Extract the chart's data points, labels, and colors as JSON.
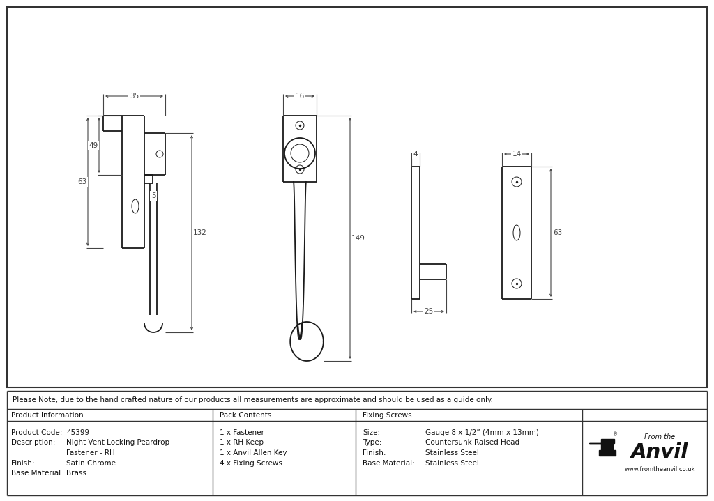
{
  "bg_color": "#ffffff",
  "line_color": "#1a1a1a",
  "dim_color": "#444444",
  "note_text": "Please Note, due to the hand crafted nature of our products all measurements are approximate and should be used as a guide only.",
  "table": {
    "col1_header": "Product Information",
    "col2_header": "Pack Contents",
    "col3_header": "Fixing Screws",
    "col4_header": "",
    "rows_col1": [
      [
        "Product Code:",
        "45399"
      ],
      [
        "Description:",
        "Night Vent Locking Peardrop"
      ],
      [
        "",
        "Fastener - RH"
      ],
      [
        "Finish:",
        "Satin Chrome"
      ],
      [
        "Base Material:",
        "Brass"
      ]
    ],
    "rows_col2": [
      "1 x Fastener",
      "1 x RH Keep",
      "1 x Anvil Allen Key",
      "4 x Fixing Screws"
    ],
    "rows_col3": [
      [
        "Size:",
        "Gauge 8 x 1/2” (4mm x 13mm)"
      ],
      [
        "Type:",
        "Countersunk Raised Head"
      ],
      [
        "Finish:",
        "Stainless Steel"
      ],
      [
        "Base Material:",
        "Stainless Steel"
      ]
    ]
  }
}
